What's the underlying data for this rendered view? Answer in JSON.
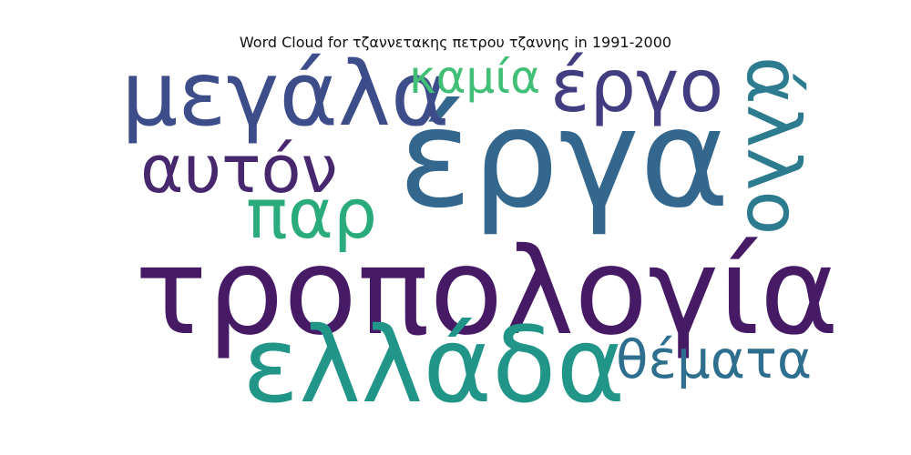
{
  "title": "Word Cloud for τζαννετακης πετρου τζαννης in 1991-2000",
  "words": [
    {
      "text": "τροπολογία",
      "color": "#471a66"
    },
    {
      "text": "έργα",
      "color": "#34678e"
    },
    {
      "text": "ελλάδα",
      "color": "#219688"
    },
    {
      "text": "μεγάλα",
      "color": "#3c4d8a"
    },
    {
      "text": "άλλο",
      "color": "#2c7b8e"
    },
    {
      "text": "αυτόν",
      "color": "#47286f"
    },
    {
      "text": "έργο",
      "color": "#423d80"
    },
    {
      "text": "παρ",
      "color": "#2aab7b"
    },
    {
      "text": "καμία",
      "color": "#42bf76"
    },
    {
      "text": "θέματα",
      "color": "#2e6e8e"
    }
  ]
}
